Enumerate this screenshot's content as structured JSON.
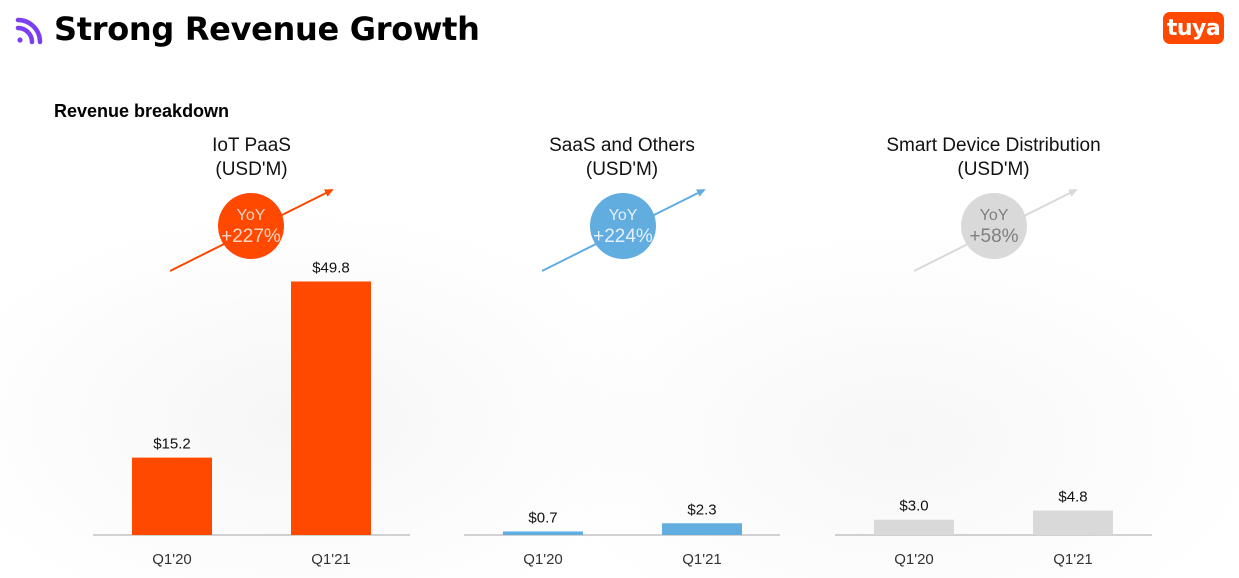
{
  "header": {
    "title": "Strong Revenue Growth",
    "logo_icon": "signal-arcs-icon",
    "accent": "#7b3ff2",
    "brand_logo": {
      "text": "tuya",
      "icon": "tuya-logo-icon",
      "color": "#ff4800"
    }
  },
  "section": {
    "title": "Revenue breakdown"
  },
  "chart_data": [
    {
      "type": "bar",
      "title": "IoT PaaS",
      "subtitle": "(USD'M)",
      "categories": [
        "Q1'20",
        "Q1'21"
      ],
      "values": [
        15.2,
        49.8
      ],
      "data_labels": [
        "$15.2",
        "$49.8"
      ],
      "ylim": [
        0,
        55
      ],
      "color": "#ff4800",
      "yoy": {
        "label": "YoY",
        "value": "+227%",
        "color": "#ff4800",
        "text_color": "#ffd7c4"
      },
      "grid": false
    },
    {
      "type": "bar",
      "title": "SaaS and Others",
      "subtitle": "(USD'M)",
      "categories": [
        "Q1'20",
        "Q1'21"
      ],
      "values": [
        0.7,
        2.3
      ],
      "data_labels": [
        "$0.7",
        "$2.3"
      ],
      "ylim": [
        0,
        55
      ],
      "color": "#62ade0",
      "yoy": {
        "label": "YoY",
        "value": "+224%",
        "color": "#62ade0",
        "text_color": "#e4f1fb"
      },
      "grid": false
    },
    {
      "type": "bar",
      "title": "Smart Device Distribution",
      "subtitle": "(USD'M)",
      "categories": [
        "Q1'20",
        "Q1'21"
      ],
      "values": [
        3.0,
        4.8
      ],
      "data_labels": [
        "$3.0",
        "$4.8"
      ],
      "ylim": [
        0,
        55
      ],
      "color": "#d9d9d9",
      "yoy": {
        "label": "YoY",
        "value": "+58%",
        "color": "#d9d9d9",
        "text_color": "#7f7f7f"
      },
      "grid": false
    }
  ]
}
